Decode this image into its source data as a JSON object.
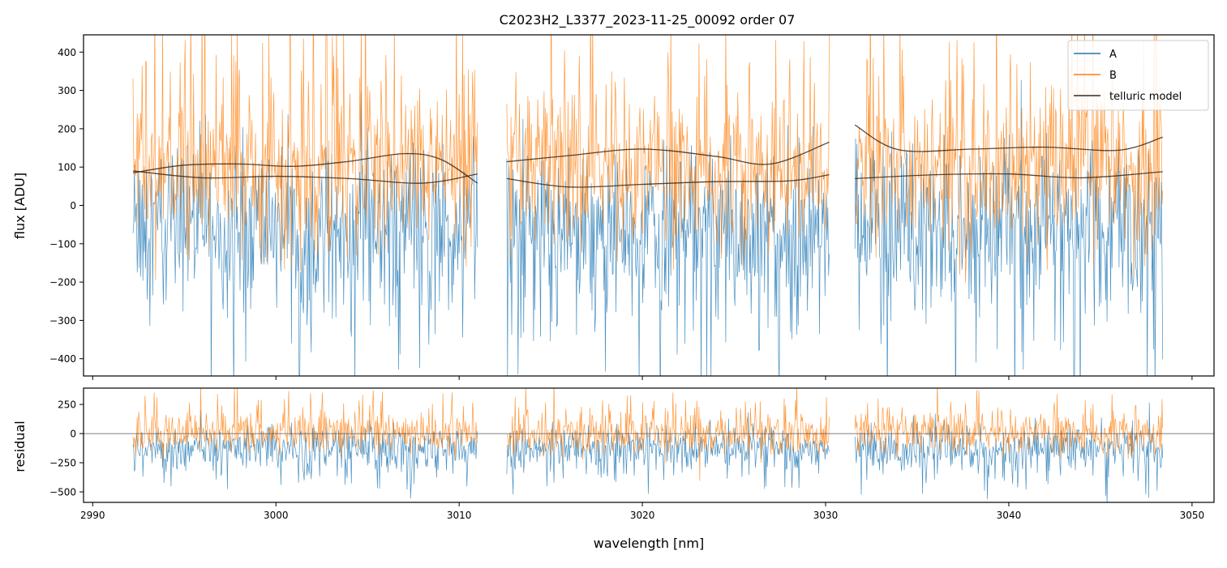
{
  "colors": {
    "A": "#1f77b4",
    "B": "#ff7f0e",
    "telluric": "#3a2a1a",
    "axes": "#000000",
    "zero_line": "#808080"
  },
  "chart_data": [
    {
      "type": "line",
      "title": "C2023H2_L3377_2023-11-25_00092  order 07",
      "xlabel": "",
      "ylabel": "flux [ADU]",
      "xlim": [
        2989.5,
        3051.2
      ],
      "ylim": [
        -445,
        445
      ],
      "x_ticks": [
        2990,
        3000,
        3010,
        3020,
        3030,
        3040,
        3050
      ],
      "y_ticks": [
        -400,
        -300,
        -200,
        -100,
        0,
        100,
        200,
        300,
        400
      ],
      "y_tick_labels": [
        "−400",
        "−300",
        "−200",
        "−100",
        "0",
        "100",
        "200",
        "300",
        "400"
      ],
      "segments": [
        [
          2992.2,
          3011.0
        ],
        [
          3012.6,
          3030.2
        ],
        [
          3031.6,
          3048.4
        ]
      ],
      "legend": {
        "placement": "top-right",
        "entries": [
          {
            "key": "A",
            "label": "A"
          },
          {
            "key": "B",
            "label": "B"
          },
          {
            "key": "telluric",
            "label": "telluric model"
          }
        ]
      },
      "series": [
        {
          "name": "A",
          "description_noise": {
            "center": -40,
            "amplitude": 190,
            "low_extra": 220
          }
        },
        {
          "name": "B",
          "description_noise": {
            "center": 80,
            "amplitude": 170,
            "high_extra": 230
          }
        },
        {
          "name": "telluric model",
          "curves": [
            {
              "x": [
                2992.2,
                2995,
                2998,
                3001,
                3004,
                3007,
                3009,
                3011.0
              ],
              "y": [
                85,
                105,
                108,
                102,
                115,
                135,
                120,
                58
              ]
            },
            {
              "x": [
                2992.2,
                2996,
                3000,
                3004,
                3008,
                3011.0
              ],
              "y": [
                90,
                72,
                76,
                70,
                58,
                82
              ]
            },
            {
              "x": [
                3012.6,
                3016,
                3020,
                3024,
                3027,
                3030.2
              ],
              "y": [
                114,
                130,
                147,
                128,
                108,
                165
              ]
            },
            {
              "x": [
                3012.6,
                3016,
                3020,
                3024,
                3028,
                3030.2
              ],
              "y": [
                70,
                48,
                55,
                62,
                64,
                80
              ]
            },
            {
              "x": [
                3031.6,
                3034,
                3038,
                3042,
                3046,
                3048.4
              ],
              "y": [
                210,
                145,
                147,
                152,
                144,
                178
              ]
            },
            {
              "x": [
                3031.6,
                3036,
                3040,
                3044,
                3048.4
              ],
              "y": [
                70,
                80,
                82,
                72,
                88
              ]
            }
          ]
        }
      ]
    },
    {
      "type": "line",
      "title": "",
      "xlabel": "wavelength [nm]",
      "ylabel": "residual",
      "xlim": [
        2989.5,
        3051.2
      ],
      "ylim": [
        -590,
        390
      ],
      "x_ticks": [
        2990,
        3000,
        3010,
        3020,
        3030,
        3040,
        3050
      ],
      "x_tick_labels": [
        "2990",
        "3000",
        "3010",
        "3020",
        "3030",
        "3040",
        "3050"
      ],
      "y_ticks": [
        -500,
        -250,
        0,
        250
      ],
      "y_tick_labels": [
        "−500",
        "−250",
        "0",
        "250"
      ],
      "zero_line": 0,
      "series": [
        {
          "name": "A",
          "description_noise": {
            "center": -110,
            "amplitude": 160,
            "low_extra": 200
          }
        },
        {
          "name": "B",
          "description_noise": {
            "center": -10,
            "amplitude": 150,
            "high_extra": 200
          }
        }
      ]
    }
  ]
}
